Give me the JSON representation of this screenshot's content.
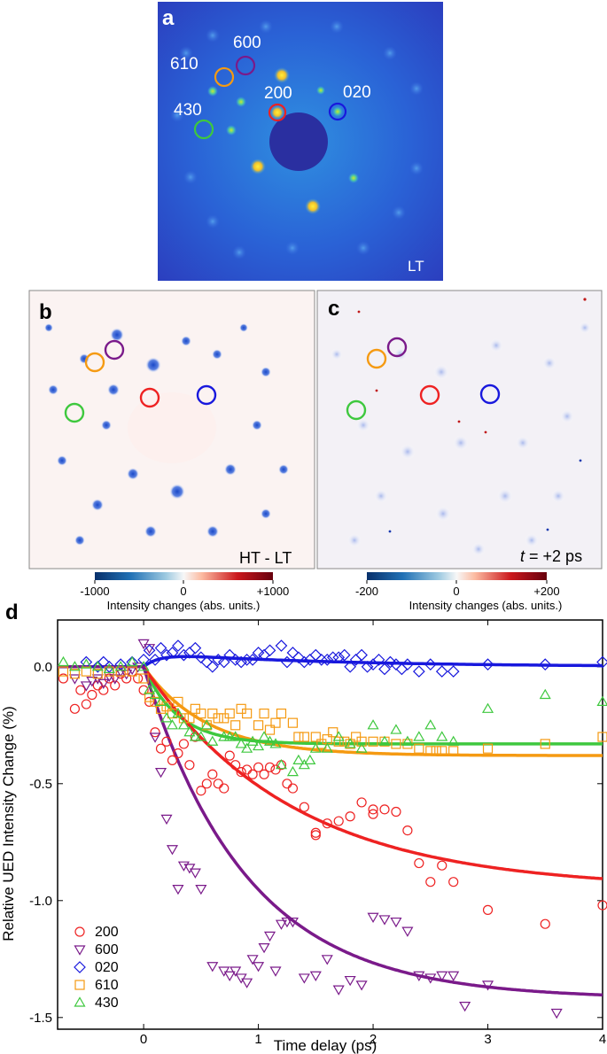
{
  "panel_a": {
    "letter": "a",
    "corner_label": "LT",
    "peak_labels": [
      "600",
      "610",
      "200",
      "020",
      "430"
    ]
  },
  "panel_b": {
    "letter": "b",
    "corner_label": "HT - LT",
    "colorbar": {
      "min": "-1000",
      "mid": "0",
      "max": "+1000",
      "label": "Intensity changes (abs. units.)"
    }
  },
  "panel_c": {
    "letter": "c",
    "corner_label_italic": "t",
    "corner_label_rest": " = +2 ps",
    "colorbar": {
      "min": "-200",
      "mid": "0",
      "max": "+200",
      "label": "Intensity changes (abs. units.)"
    }
  },
  "colors": {
    "200": "#ee2222",
    "600": "#7a1a8a",
    "020": "#1818dd",
    "610": "#f59a12",
    "430": "#3ec83e"
  },
  "chart_data": {
    "type": "scatter",
    "panel_letter": "d",
    "xlabel": "Time delay (ps)",
    "ylabel": "Relative UED Intensity Change (%)",
    "xlim": [
      -0.75,
      4.0
    ],
    "ylim": [
      -1.55,
      0.2
    ],
    "x_ticks": [
      "0",
      "1",
      "2",
      "3",
      "4"
    ],
    "y_ticks": [
      "0.0",
      "-0.5",
      "-1.0",
      "-1.5"
    ],
    "series": [
      {
        "name": "200",
        "marker": "circle",
        "color": "#ee2222",
        "fit": {
          "A": -0.95,
          "tau": 1.3
        },
        "x": [
          -0.7,
          -0.6,
          -0.55,
          -0.5,
          -0.45,
          -0.4,
          -0.35,
          -0.3,
          -0.25,
          -0.2,
          -0.15,
          -0.1,
          -0.05,
          0.0,
          0.05,
          0.1,
          0.15,
          0.2,
          0.25,
          0.3,
          0.35,
          0.4,
          0.45,
          0.5,
          0.55,
          0.6,
          0.65,
          0.7,
          0.75,
          0.8,
          0.85,
          0.9,
          0.95,
          1.0,
          1.05,
          1.1,
          1.15,
          1.2,
          1.25,
          1.3,
          1.4,
          1.5,
          1.5,
          1.6,
          1.7,
          1.8,
          1.9,
          2.0,
          2.0,
          2.1,
          2.2,
          2.3,
          2.4,
          2.5,
          2.6,
          2.7,
          3.0,
          3.5,
          4.0
        ],
        "y": [
          -0.05,
          -0.18,
          -0.1,
          -0.16,
          -0.12,
          -0.08,
          -0.1,
          -0.05,
          -0.08,
          -0.03,
          -0.05,
          -0.02,
          -0.05,
          -0.1,
          -0.15,
          -0.28,
          -0.35,
          -0.32,
          -0.4,
          -0.37,
          -0.33,
          -0.42,
          -0.3,
          -0.53,
          -0.5,
          -0.46,
          -0.5,
          -0.52,
          -0.38,
          -0.42,
          -0.45,
          -0.44,
          -0.46,
          -0.43,
          -0.46,
          -0.43,
          -0.44,
          -0.42,
          -0.5,
          -0.52,
          -0.6,
          -0.71,
          -0.72,
          -0.67,
          -0.66,
          -0.64,
          -0.58,
          -0.61,
          -0.63,
          -0.61,
          -0.62,
          -0.7,
          -0.84,
          -0.92,
          -0.85,
          -0.92,
          -1.04,
          -1.1,
          -1.02
        ]
      },
      {
        "name": "600",
        "marker": "triangle-down",
        "color": "#7a1a8a",
        "fit": {
          "A": -1.42,
          "tau": 0.9
        },
        "x": [
          -0.6,
          -0.5,
          -0.45,
          -0.4,
          -0.35,
          -0.3,
          -0.25,
          -0.2,
          -0.15,
          -0.1,
          -0.05,
          0.0,
          0.05,
          0.1,
          0.15,
          0.2,
          0.25,
          0.3,
          0.35,
          0.4,
          0.45,
          0.5,
          0.6,
          0.7,
          0.75,
          0.8,
          0.85,
          0.9,
          0.95,
          1.0,
          1.05,
          1.1,
          1.15,
          1.2,
          1.25,
          1.3,
          1.4,
          1.5,
          1.6,
          1.7,
          1.8,
          1.9,
          2.0,
          2.1,
          2.2,
          2.3,
          2.4,
          2.5,
          2.6,
          2.7,
          2.8,
          3.0,
          3.6
        ],
        "y": [
          -0.05,
          -0.08,
          -0.06,
          -0.05,
          -0.07,
          -0.04,
          -0.05,
          -0.02,
          -0.03,
          -0.01,
          0.0,
          0.1,
          0.08,
          -0.3,
          -0.45,
          -0.65,
          -0.78,
          -0.95,
          -0.85,
          -0.86,
          -0.88,
          -0.95,
          -1.28,
          -1.3,
          -1.32,
          -1.3,
          -1.33,
          -1.35,
          -1.25,
          -1.28,
          -1.2,
          -1.15,
          -1.3,
          -1.1,
          -1.09,
          -1.09,
          -1.33,
          -1.32,
          -1.25,
          -1.38,
          -1.34,
          -1.36,
          -1.07,
          -1.08,
          -1.09,
          -1.13,
          -1.32,
          -1.33,
          -1.32,
          -1.32,
          -1.45,
          -1.36,
          -1.48
        ]
      },
      {
        "name": "020",
        "marker": "diamond",
        "color": "#1818dd",
        "fit": {
          "A": 0.06,
          "tau": 0.15,
          "decay": 1.6
        },
        "x": [
          -0.5,
          -0.4,
          -0.35,
          -0.3,
          -0.2,
          -0.1,
          0.0,
          0.05,
          0.1,
          0.15,
          0.2,
          0.25,
          0.3,
          0.35,
          0.4,
          0.45,
          0.5,
          0.55,
          0.6,
          0.65,
          0.7,
          0.75,
          0.8,
          0.85,
          0.9,
          0.95,
          1.0,
          1.05,
          1.1,
          1.2,
          1.25,
          1.3,
          1.35,
          1.4,
          1.45,
          1.5,
          1.55,
          1.6,
          1.65,
          1.7,
          1.75,
          1.8,
          1.85,
          1.9,
          1.95,
          2.0,
          2.05,
          2.1,
          2.15,
          2.2,
          2.25,
          2.3,
          2.4,
          2.5,
          2.6,
          2.7,
          3.0,
          3.5,
          4.0
        ],
        "y": [
          0.02,
          0.0,
          0.02,
          0.0,
          0.01,
          0.02,
          0.03,
          0.07,
          0.03,
          0.08,
          0.05,
          0.06,
          0.09,
          0.05,
          0.06,
          0.08,
          0.04,
          0.02,
          0.0,
          0.03,
          0.02,
          0.05,
          0.03,
          0.02,
          0.03,
          0.03,
          0.06,
          0.05,
          0.07,
          0.09,
          0.02,
          0.06,
          0.04,
          0.02,
          0.03,
          0.05,
          0.03,
          0.03,
          0.04,
          0.04,
          0.05,
          0.0,
          0.03,
          0.05,
          0.0,
          0.01,
          0.03,
          -0.01,
          0.02,
          0.01,
          -0.01,
          0.01,
          -0.02,
          0.01,
          -0.02,
          -0.02,
          0.01,
          0.01,
          0.02
        ]
      },
      {
        "name": "610",
        "marker": "square",
        "color": "#f59a12",
        "fit": {
          "A": -0.38,
          "tau": 0.55
        },
        "x": [
          -0.7,
          -0.6,
          -0.5,
          -0.4,
          -0.3,
          -0.2,
          -0.1,
          0.0,
          0.05,
          0.1,
          0.15,
          0.2,
          0.25,
          0.3,
          0.35,
          0.4,
          0.45,
          0.5,
          0.55,
          0.6,
          0.65,
          0.7,
          0.75,
          0.8,
          0.85,
          0.9,
          1.0,
          1.05,
          1.1,
          1.15,
          1.2,
          1.3,
          1.35,
          1.4,
          1.5,
          1.55,
          1.6,
          1.65,
          1.7,
          1.75,
          1.8,
          1.85,
          1.9,
          2.0,
          2.1,
          2.2,
          2.3,
          2.4,
          2.5,
          2.55,
          2.6,
          2.7,
          3.0,
          3.5,
          4.0
        ],
        "y": [
          -0.02,
          -0.03,
          -0.02,
          -0.03,
          -0.02,
          -0.02,
          -0.02,
          -0.05,
          -0.13,
          -0.15,
          -0.18,
          -0.17,
          -0.2,
          -0.15,
          -0.22,
          -0.22,
          -0.18,
          -0.2,
          -0.25,
          -0.2,
          -0.22,
          -0.22,
          -0.2,
          -0.25,
          -0.18,
          -0.2,
          -0.25,
          -0.2,
          -0.27,
          -0.24,
          -0.2,
          -0.24,
          -0.3,
          -0.3,
          -0.3,
          -0.33,
          -0.31,
          -0.28,
          -0.32,
          -0.32,
          -0.33,
          -0.3,
          -0.32,
          -0.32,
          -0.32,
          -0.33,
          -0.33,
          -0.35,
          -0.36,
          -0.36,
          -0.36,
          -0.36,
          -0.35,
          -0.33,
          -0.3
        ]
      },
      {
        "name": "430",
        "marker": "triangle-up",
        "color": "#3ec83e",
        "fit": {
          "A": -0.33,
          "tau": 0.3
        },
        "x": [
          -0.7,
          -0.6,
          -0.5,
          -0.4,
          -0.3,
          -0.2,
          -0.1,
          0.0,
          0.05,
          0.1,
          0.15,
          0.2,
          0.25,
          0.3,
          0.35,
          0.4,
          0.45,
          0.5,
          0.55,
          0.6,
          0.7,
          0.75,
          0.8,
          0.85,
          0.9,
          0.95,
          1.0,
          1.05,
          1.1,
          1.15,
          1.2,
          1.3,
          1.35,
          1.4,
          1.45,
          1.5,
          1.6,
          1.7,
          1.8,
          1.9,
          2.0,
          2.1,
          2.2,
          2.3,
          2.4,
          2.5,
          2.6,
          2.7,
          3.0,
          3.5,
          4.0
        ],
        "y": [
          0.02,
          0.0,
          0.01,
          0.0,
          -0.01,
          0.0,
          0.02,
          0.0,
          -0.1,
          -0.12,
          -0.15,
          -0.22,
          -0.25,
          -0.2,
          -0.25,
          -0.28,
          -0.3,
          -0.3,
          -0.25,
          -0.32,
          -0.3,
          -0.3,
          -0.3,
          -0.33,
          -0.35,
          -0.32,
          -0.34,
          -0.3,
          -0.32,
          -0.33,
          -0.42,
          -0.45,
          -0.4,
          -0.42,
          -0.4,
          -0.35,
          -0.35,
          -0.3,
          -0.33,
          -0.35,
          -0.25,
          -0.32,
          -0.27,
          -0.32,
          -0.3,
          -0.25,
          -0.3,
          -0.32,
          -0.18,
          -0.12,
          -0.15
        ]
      }
    ]
  }
}
